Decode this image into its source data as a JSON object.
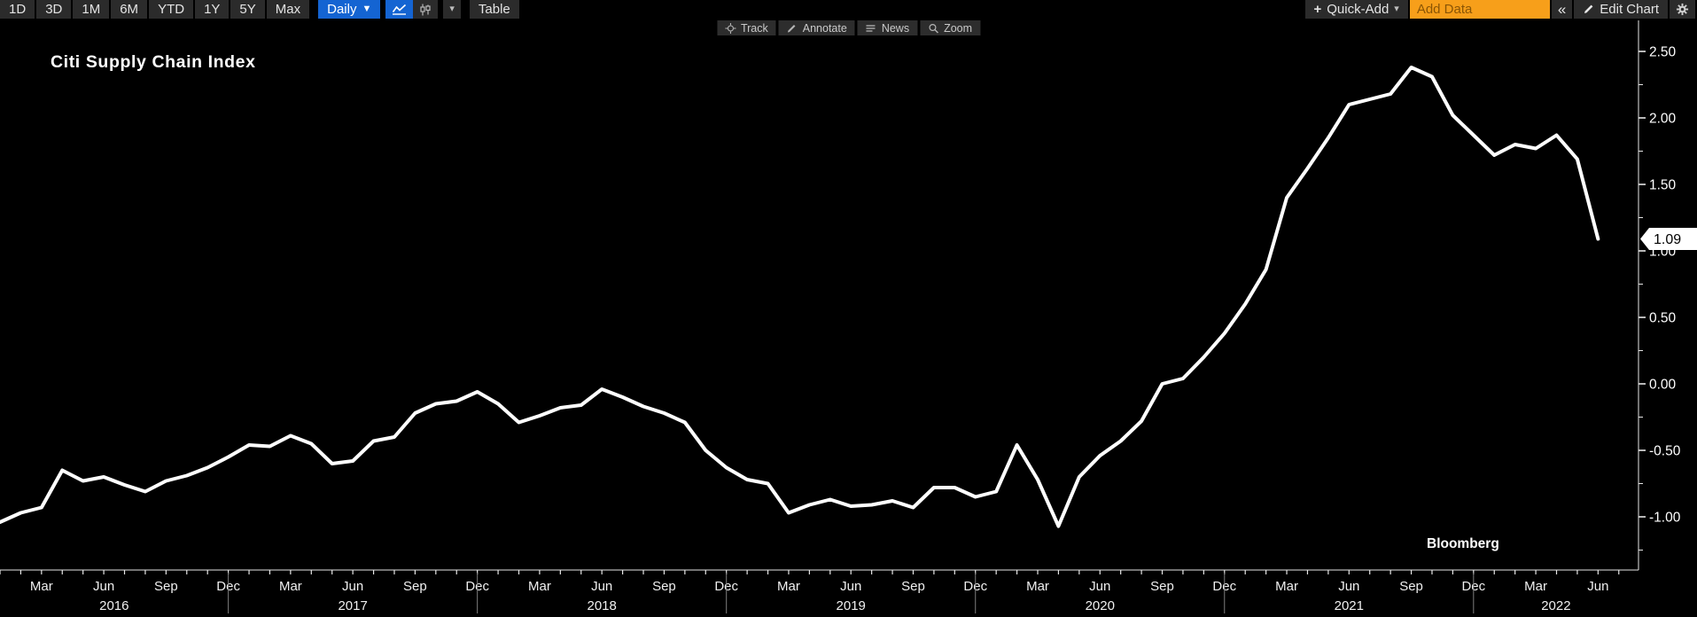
{
  "toolbar": {
    "periods": [
      "1D",
      "3D",
      "1M",
      "6M",
      "YTD",
      "1Y",
      "5Y",
      "Max"
    ],
    "frequency_label": "Daily",
    "table_label": "Table",
    "quick_add_label": "Quick-Add",
    "add_data_placeholder": "Add Data",
    "edit_chart_label": "Edit Chart"
  },
  "icons": {
    "caret_down": "▼",
    "caret_small": "▾",
    "plus": "+",
    "collapse": "«"
  },
  "subtoolbar": {
    "items": [
      {
        "label": "Track"
      },
      {
        "label": "Annotate"
      },
      {
        "label": "News"
      },
      {
        "label": "Zoom"
      }
    ]
  },
  "chart": {
    "title": "Citi Supply Chain Index",
    "watermark": "Bloomberg",
    "last_value_badge": "1.09"
  },
  "colors": {
    "background": "#000000",
    "line": "#ffffff",
    "accent_blue": "#1464d2",
    "add_data_orange": "#f79f1a",
    "axis": "#e6e6e6",
    "year_separator": "#7f7f7f"
  },
  "chart_data": {
    "type": "line",
    "title": "Citi Supply Chain Index",
    "frequency": "monthly",
    "ylim": [
      -1.4,
      2.73
    ],
    "y_ticks": [
      2.5,
      2.0,
      1.5,
      1.0,
      0.5,
      0.0,
      -0.5,
      -1.0
    ],
    "y_tick_labels": [
      "2.50",
      "2.00",
      "1.50",
      "1.00",
      "0.50",
      "0.00",
      "-0.50",
      "-1.00"
    ],
    "x_quarter_month_labels": [
      "Mar",
      "Jun",
      "Sep",
      "Dec"
    ],
    "x_year_labels": [
      "2016",
      "2017",
      "2018",
      "2019",
      "2020",
      "2021",
      "2022"
    ],
    "last_value": 1.09,
    "points": [
      [
        "2016-01",
        -1.04
      ],
      [
        "2016-02",
        -0.97
      ],
      [
        "2016-03",
        -0.93
      ],
      [
        "2016-04",
        -0.65
      ],
      [
        "2016-05",
        -0.73
      ],
      [
        "2016-06",
        -0.7
      ],
      [
        "2016-07",
        -0.76
      ],
      [
        "2016-08",
        -0.81
      ],
      [
        "2016-09",
        -0.73
      ],
      [
        "2016-10",
        -0.69
      ],
      [
        "2016-11",
        -0.63
      ],
      [
        "2016-12",
        -0.55
      ],
      [
        "2017-01",
        -0.46
      ],
      [
        "2017-02",
        -0.47
      ],
      [
        "2017-03",
        -0.39
      ],
      [
        "2017-04",
        -0.45
      ],
      [
        "2017-05",
        -0.6
      ],
      [
        "2017-06",
        -0.58
      ],
      [
        "2017-07",
        -0.43
      ],
      [
        "2017-08",
        -0.4
      ],
      [
        "2017-09",
        -0.22
      ],
      [
        "2017-10",
        -0.15
      ],
      [
        "2017-11",
        -0.13
      ],
      [
        "2017-12",
        -0.06
      ],
      [
        "2018-01",
        -0.15
      ],
      [
        "2018-02",
        -0.29
      ],
      [
        "2018-03",
        -0.24
      ],
      [
        "2018-04",
        -0.18
      ],
      [
        "2018-05",
        -0.16
      ],
      [
        "2018-06",
        -0.04
      ],
      [
        "2018-07",
        -0.1
      ],
      [
        "2018-08",
        -0.17
      ],
      [
        "2018-09",
        -0.22
      ],
      [
        "2018-10",
        -0.29
      ],
      [
        "2018-11",
        -0.5
      ],
      [
        "2018-12",
        -0.63
      ],
      [
        "2019-01",
        -0.72
      ],
      [
        "2019-02",
        -0.75
      ],
      [
        "2019-03",
        -0.97
      ],
      [
        "2019-04",
        -0.91
      ],
      [
        "2019-05",
        -0.87
      ],
      [
        "2019-06",
        -0.92
      ],
      [
        "2019-07",
        -0.91
      ],
      [
        "2019-08",
        -0.88
      ],
      [
        "2019-09",
        -0.93
      ],
      [
        "2019-10",
        -0.78
      ],
      [
        "2019-11",
        -0.78
      ],
      [
        "2019-12",
        -0.85
      ],
      [
        "2020-01",
        -0.81
      ],
      [
        "2020-02",
        -0.46
      ],
      [
        "2020-03",
        -0.72
      ],
      [
        "2020-04",
        -1.07
      ],
      [
        "2020-05",
        -0.7
      ],
      [
        "2020-06",
        -0.54
      ],
      [
        "2020-07",
        -0.43
      ],
      [
        "2020-08",
        -0.28
      ],
      [
        "2020-09",
        0.0
      ],
      [
        "2020-10",
        0.04
      ],
      [
        "2020-11",
        0.2
      ],
      [
        "2020-12",
        0.38
      ],
      [
        "2021-01",
        0.6
      ],
      [
        "2021-02",
        0.86
      ],
      [
        "2021-03",
        1.4
      ],
      [
        "2021-04",
        1.62
      ],
      [
        "2021-05",
        1.85
      ],
      [
        "2021-06",
        2.1
      ],
      [
        "2021-07",
        2.14
      ],
      [
        "2021-08",
        2.18
      ],
      [
        "2021-09",
        2.38
      ],
      [
        "2021-10",
        2.31
      ],
      [
        "2021-11",
        2.02
      ],
      [
        "2021-12",
        1.87
      ],
      [
        "2022-01",
        1.72
      ],
      [
        "2022-02",
        1.8
      ],
      [
        "2022-03",
        1.77
      ],
      [
        "2022-04",
        1.87
      ],
      [
        "2022-05",
        1.69
      ],
      [
        "2022-06",
        1.09
      ]
    ]
  }
}
